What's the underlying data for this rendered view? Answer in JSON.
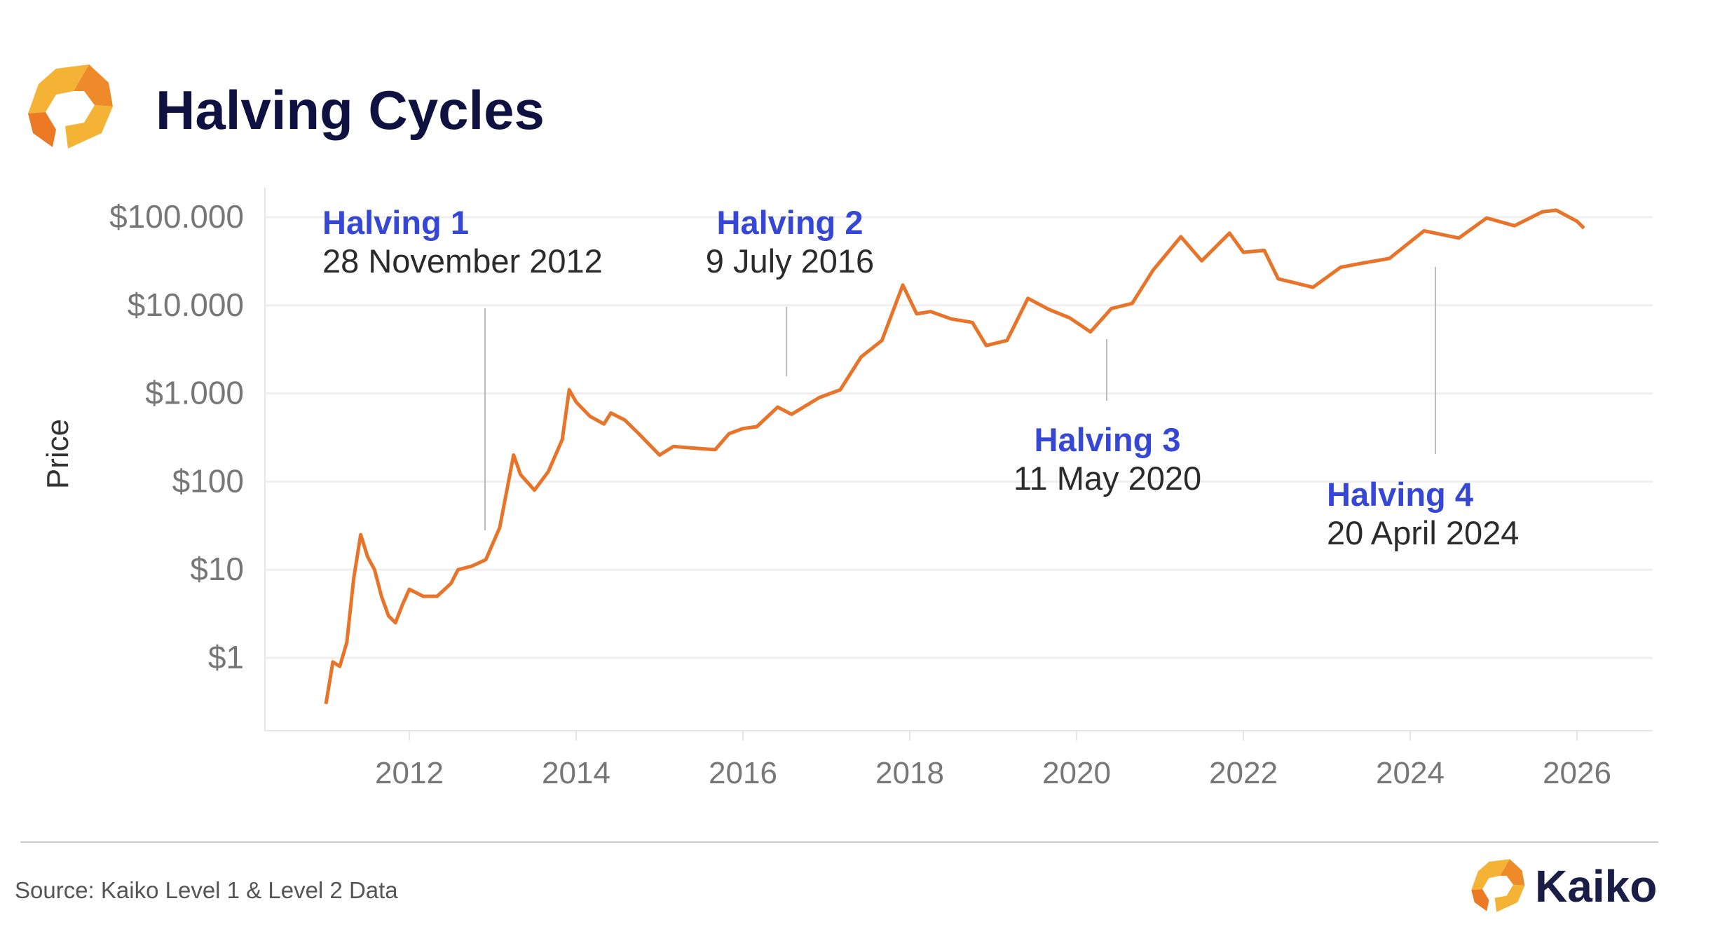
{
  "header": {
    "title": "Halving Cycles"
  },
  "footer": {
    "source": "Source: Kaiko Level 1 & Level 2 Data",
    "brand": "Kaiko"
  },
  "colors": {
    "line": "#e8742a",
    "title": "#0f1140",
    "annotation_title": "#3647d6",
    "logo_light": "#f5b335",
    "logo_dark": "#ec7a25"
  },
  "chart_data": {
    "type": "line",
    "title": "Halving Cycles",
    "xlabel": "",
    "ylabel": "Price",
    "y_scale": "log",
    "ylim": [
      0.2,
      150000
    ],
    "xlim": [
      "2010-03",
      "2027-03"
    ],
    "grid": true,
    "y_ticks": [
      {
        "value": 100000,
        "label": "$100.000"
      },
      {
        "value": 10000,
        "label": "$10.000"
      },
      {
        "value": 1000,
        "label": "$1.000"
      },
      {
        "value": 100,
        "label": "$100"
      },
      {
        "value": 10,
        "label": "$10"
      },
      {
        "value": 1,
        "label": "$1"
      }
    ],
    "x_ticks": [
      "2012",
      "2014",
      "2016",
      "2018",
      "2020",
      "2022",
      "2024",
      "2026"
    ],
    "series": [
      {
        "color": "#e8742a",
        "points": [
          [
            "2011-01",
            0.3
          ],
          [
            "2011-02",
            0.9
          ],
          [
            "2011-03",
            0.8
          ],
          [
            "2011-04",
            1.5
          ],
          [
            "2011-05",
            8
          ],
          [
            "2011-06",
            25
          ],
          [
            "2011-07",
            14
          ],
          [
            "2011-08",
            10
          ],
          [
            "2011-09",
            5
          ],
          [
            "2011-10",
            3
          ],
          [
            "2011-11",
            2.5
          ],
          [
            "2011-12",
            4
          ],
          [
            "2012-01",
            6
          ],
          [
            "2012-03",
            5
          ],
          [
            "2012-05",
            5
          ],
          [
            "2012-07",
            7
          ],
          [
            "2012-08",
            10
          ],
          [
            "2012-10",
            11
          ],
          [
            "2012-12",
            13
          ],
          [
            "2013-02",
            30
          ],
          [
            "2013-04",
            200
          ],
          [
            "2013-05",
            120
          ],
          [
            "2013-07",
            80
          ],
          [
            "2013-09",
            130
          ],
          [
            "2013-11",
            300
          ],
          [
            "2013-12",
            1100
          ],
          [
            "2014-01",
            800
          ],
          [
            "2014-03",
            550
          ],
          [
            "2014-05",
            450
          ],
          [
            "2014-06",
            600
          ],
          [
            "2014-08",
            500
          ],
          [
            "2014-10",
            350
          ],
          [
            "2015-01",
            200
          ],
          [
            "2015-03",
            250
          ],
          [
            "2015-06",
            240
          ],
          [
            "2015-09",
            230
          ],
          [
            "2015-11",
            350
          ],
          [
            "2016-01",
            400
          ],
          [
            "2016-03",
            420
          ],
          [
            "2016-06",
            700
          ],
          [
            "2016-08",
            580
          ],
          [
            "2016-12",
            900
          ],
          [
            "2017-03",
            1100
          ],
          [
            "2017-06",
            2600
          ],
          [
            "2017-09",
            4000
          ],
          [
            "2017-12",
            17000
          ],
          [
            "2018-02",
            8000
          ],
          [
            "2018-04",
            8500
          ],
          [
            "2018-07",
            7000
          ],
          [
            "2018-10",
            6400
          ],
          [
            "2018-12",
            3500
          ],
          [
            "2019-03",
            4000
          ],
          [
            "2019-06",
            12000
          ],
          [
            "2019-09",
            9000
          ],
          [
            "2019-12",
            7200
          ],
          [
            "2020-03",
            5000
          ],
          [
            "2020-06",
            9200
          ],
          [
            "2020-09",
            10500
          ],
          [
            "2020-12",
            25000
          ],
          [
            "2021-04",
            60000
          ],
          [
            "2021-07",
            32000
          ],
          [
            "2021-11",
            66000
          ],
          [
            "2022-01",
            40000
          ],
          [
            "2022-04",
            42000
          ],
          [
            "2022-06",
            20000
          ],
          [
            "2022-11",
            16000
          ],
          [
            "2023-03",
            27000
          ],
          [
            "2023-06",
            30000
          ],
          [
            "2023-10",
            34000
          ],
          [
            "2024-03",
            70000
          ],
          [
            "2024-08",
            58000
          ],
          [
            "2024-12",
            98000
          ],
          [
            "2025-04",
            80000
          ],
          [
            "2025-08",
            115000
          ],
          [
            "2025-10",
            120000
          ],
          [
            "2026-01",
            90000
          ],
          [
            "2026-02",
            75000
          ]
        ]
      }
    ],
    "annotations": [
      {
        "title": "Halving 1",
        "date": "28 November 2012",
        "x": "2012-11-28"
      },
      {
        "title": "Halving 2",
        "date": "9 July 2016",
        "x": "2016-07-09"
      },
      {
        "title": "Halving 3",
        "date": "11 May 2020",
        "x": "2020-05-11"
      },
      {
        "title": "Halving 4",
        "date": "20 April 2024",
        "x": "2024-04-20"
      }
    ]
  }
}
